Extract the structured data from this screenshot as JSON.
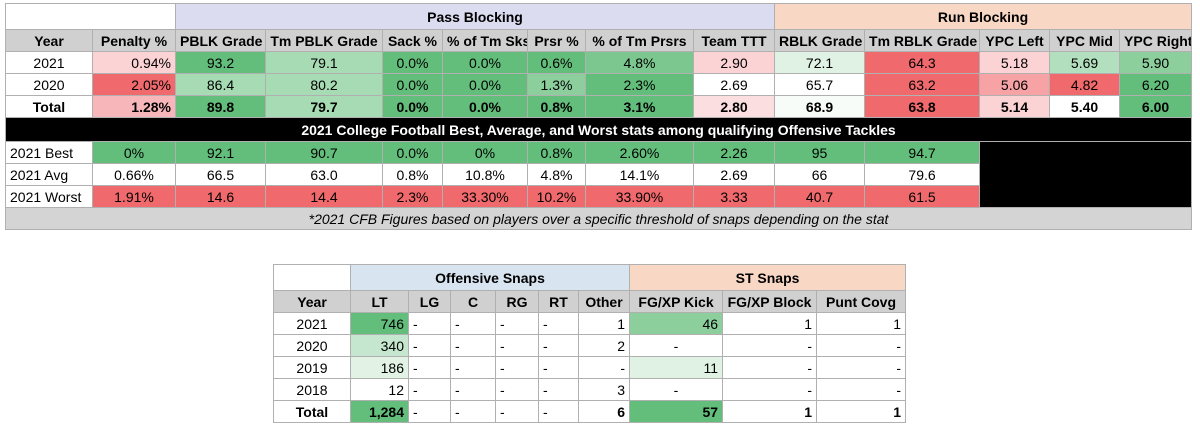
{
  "colors": {
    "green_dark": "#63be7b",
    "green_mid": "#a6dbb3",
    "green_light": "#dff2e4",
    "red_dark": "#f0696c",
    "red_mid": "#f7a3a6",
    "red_light": "#fbd3d5",
    "header_gray": "#d0d0d0"
  },
  "table1": {
    "group_headers": {
      "pass": "Pass Blocking",
      "run": "Run Blocking"
    },
    "columns": [
      "Year",
      "Penalty %",
      "PBLK Grade",
      "Tm PBLK Grade",
      "Sack %",
      "% of Tm Sks",
      "Prsr %",
      "% of Tm Prsrs",
      "Team TTT",
      "RBLK Grade",
      "Tm RBLK Grade",
      "YPC Left",
      "YPC Mid",
      "YPC Right"
    ],
    "rows": [
      [
        "2021",
        "0.94%",
        "93.2",
        "79.1",
        "0.0%",
        "0.0%",
        "0.6%",
        "4.8%",
        "2.90",
        "72.1",
        "64.3",
        "5.18",
        "5.69",
        "5.90"
      ],
      [
        "2020",
        "2.05%",
        "86.4",
        "80.2",
        "0.0%",
        "0.0%",
        "1.3%",
        "2.3%",
        "2.69",
        "65.7",
        "63.2",
        "5.06",
        "4.82",
        "6.20"
      ],
      [
        "Total",
        "1.28%",
        "89.8",
        "79.7",
        "0.0%",
        "0.0%",
        "0.8%",
        "3.1%",
        "2.80",
        "68.9",
        "63.8",
        "5.14",
        "5.40",
        "6.00"
      ]
    ],
    "banner": "2021 College Football Best, Average, and Worst stats among qualifying Offensive Tackles",
    "cfb_rows": [
      [
        "2021 Best",
        "0%",
        "92.1",
        "90.7",
        "0.0%",
        "0%",
        "0.8%",
        "2.60%",
        "2.26",
        "95",
        "94.7"
      ],
      [
        "2021 Avg",
        "0.66%",
        "66.5",
        "63.0",
        "0.8%",
        "10.8%",
        "4.8%",
        "14.1%",
        "2.69",
        "66",
        "79.6"
      ],
      [
        "2021 Worst",
        "1.91%",
        "14.6",
        "14.4",
        "2.3%",
        "33.30%",
        "10.2%",
        "33.90%",
        "3.33",
        "40.7",
        "61.5"
      ]
    ],
    "footnote": "*2021 CFB Figures based on players over a specific threshold of snaps depending on the stat"
  },
  "table2": {
    "group_headers": {
      "offense": "Offensive Snaps",
      "st": "ST Snaps"
    },
    "columns": [
      "Year",
      "LT",
      "LG",
      "C",
      "RG",
      "RT",
      "Other",
      "FG/XP Kick",
      "FG/XP Block",
      "Punt Covg"
    ],
    "rows": [
      [
        "2021",
        "746",
        "-",
        "-",
        "-",
        "-",
        "1",
        "46",
        "1",
        "1"
      ],
      [
        "2020",
        "340",
        "-",
        "-",
        "-",
        "-",
        "2",
        "-",
        "-",
        "-"
      ],
      [
        "2019",
        "186",
        "-",
        "-",
        "-",
        "-",
        "-",
        "11",
        "-",
        "-"
      ],
      [
        "2018",
        "12",
        "-",
        "-",
        "-",
        "-",
        "3",
        "-",
        "-",
        "-"
      ],
      [
        "Total",
        "1,284",
        "-",
        "-",
        "-",
        "-",
        "6",
        "57",
        "1",
        "1"
      ]
    ]
  }
}
